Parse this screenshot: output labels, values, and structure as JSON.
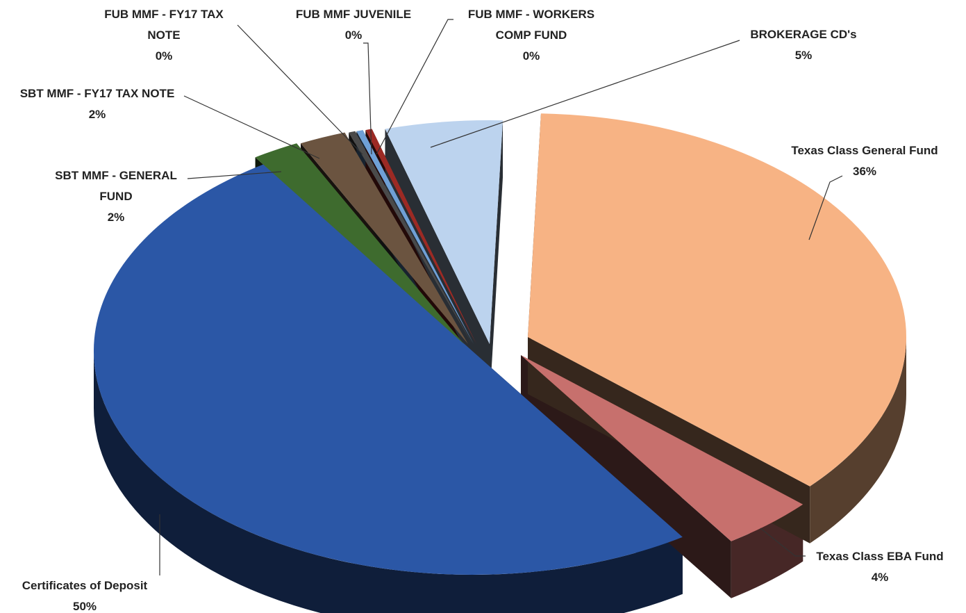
{
  "chart_data": {
    "type": "pie",
    "style": "3d-exploded",
    "slices": [
      {
        "label": "Texas Class General Fund",
        "value": 36,
        "value_label": "36%",
        "color": "#f7b384"
      },
      {
        "label": "Texas Class EBA Fund",
        "value": 4,
        "value_label": "4%",
        "color": "#c7706d"
      },
      {
        "label": "Certificates of Deposit",
        "value": 50,
        "value_label": "50%",
        "color": "#2b57a6"
      },
      {
        "label": "SBT MMF - GENERAL FUND",
        "value": 2,
        "value_label": "2%",
        "color": "#3e6b2e"
      },
      {
        "label": "SBT MMF - FY17 TAX NOTE",
        "value": 2,
        "value_label": "2%",
        "color": "#6b5440"
      },
      {
        "label": "FUB MMF - FY17 TAX NOTE",
        "value": 0,
        "value_label": "0%",
        "color": "#4a4a4a"
      },
      {
        "label": "FUB MMF JUVENILE",
        "value": 0,
        "value_label": "0%",
        "color": "#6fa0d6"
      },
      {
        "label": "FUB MMF - WORKERS COMP FUND",
        "value": 0,
        "value_label": "0%",
        "color": "#9c2a24"
      },
      {
        "label": "BROKERAGE CD's",
        "value": 5,
        "value_label": "5%",
        "color": "#bcd3ee"
      }
    ]
  },
  "labels": [
    {
      "lines": [
        "Texas Class General Fund",
        "36%"
      ]
    },
    {
      "lines": [
        "Texas Class EBA Fund",
        "4%"
      ]
    },
    {
      "lines": [
        "Certificates of Deposit",
        "50%"
      ]
    },
    {
      "lines": [
        "SBT MMF - GENERAL",
        "FUND",
        "2%"
      ]
    },
    {
      "lines": [
        "SBT MMF - FY17 TAX NOTE",
        "2%"
      ]
    },
    {
      "lines": [
        "FUB MMF - FY17 TAX",
        "NOTE",
        "0%"
      ]
    },
    {
      "lines": [
        "FUB MMF JUVENILE",
        "0%"
      ]
    },
    {
      "lines": [
        "FUB MMF - WORKERS",
        "COMP FUND",
        "0%"
      ]
    },
    {
      "lines": [
        "BROKERAGE CD's",
        "5%"
      ]
    }
  ]
}
